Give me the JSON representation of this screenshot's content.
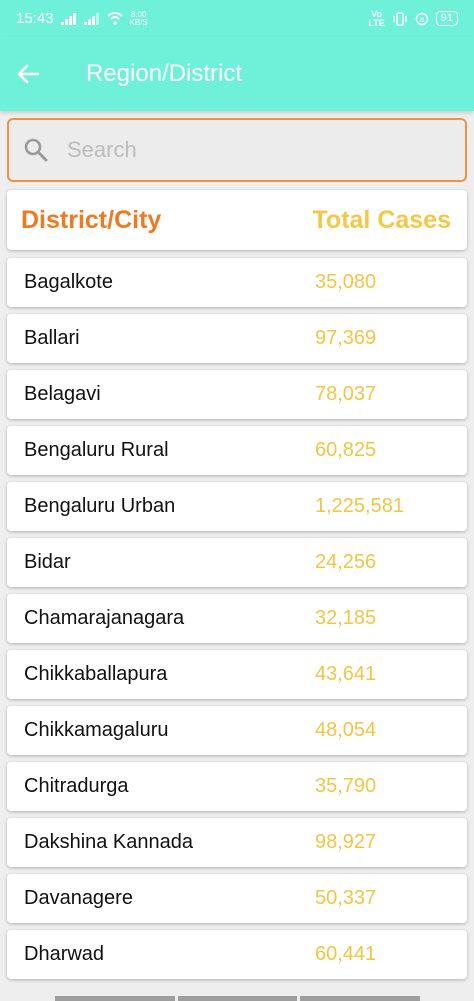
{
  "status_bar": {
    "time": "15:43",
    "net_speed_value": "8.00",
    "net_speed_unit": "KB/S",
    "volte_top": "Vo",
    "volte_bottom": "LTE",
    "battery": "91"
  },
  "app_bar": {
    "title": "Region/District"
  },
  "search": {
    "placeholder": "Search"
  },
  "table_header": {
    "left": "District/City",
    "right": "Total Cases"
  },
  "rows": [
    {
      "name": "Bagalkote",
      "cases": "35,080"
    },
    {
      "name": "Ballari",
      "cases": "97,369"
    },
    {
      "name": "Belagavi",
      "cases": "78,037"
    },
    {
      "name": "Bengaluru Rural",
      "cases": "60,825"
    },
    {
      "name": "Bengaluru Urban",
      "cases": "1,225,581"
    },
    {
      "name": "Bidar",
      "cases": "24,256"
    },
    {
      "name": "Chamarajanagara",
      "cases": "32,185"
    },
    {
      "name": "Chikkaballapura",
      "cases": "43,641"
    },
    {
      "name": "Chikkamagaluru",
      "cases": "48,054"
    },
    {
      "name": "Chitradurga",
      "cases": "35,790"
    },
    {
      "name": "Dakshina Kannada",
      "cases": "98,927"
    },
    {
      "name": "Davanagere",
      "cases": "50,337"
    },
    {
      "name": "Dharwad",
      "cases": "60,441"
    }
  ],
  "colors": {
    "app_bar": "#6ff0d8",
    "header_left": "#ee7a21",
    "header_right": "#f5c748",
    "cases": "#f2c545",
    "search_border": "#ee9245"
  }
}
